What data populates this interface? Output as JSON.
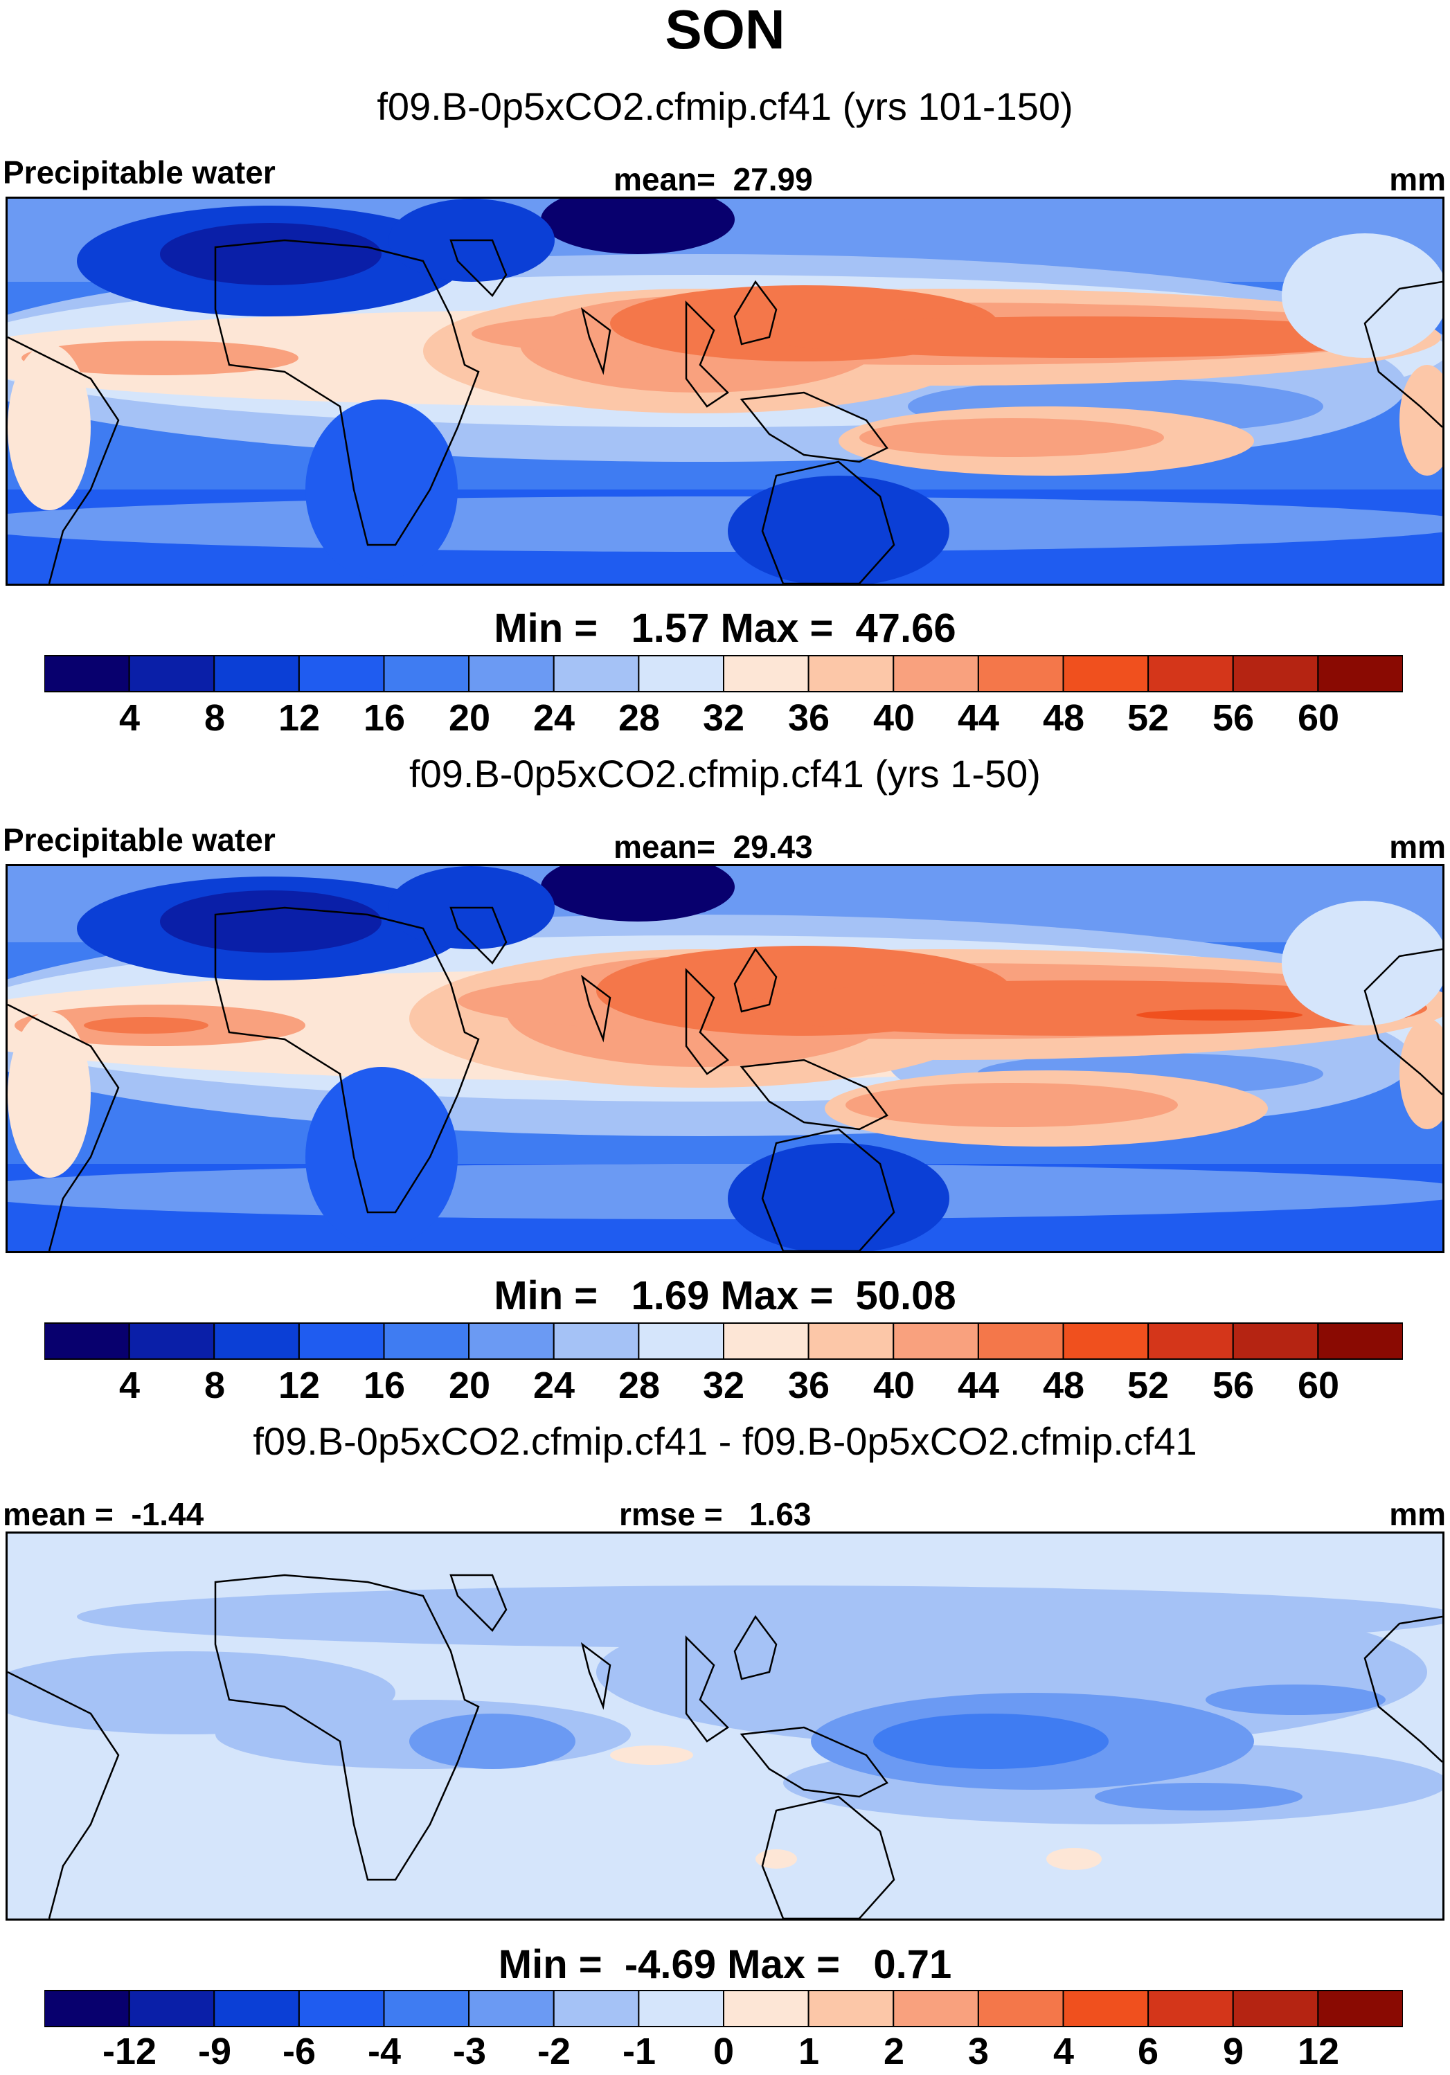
{
  "figure": {
    "season": "SON",
    "colors": {
      "abs": [
        "#08006e",
        "#0a1fa8",
        "#0b3fd6",
        "#1f5cf0",
        "#3f7cf2",
        "#6b9af3",
        "#a5c2f6",
        "#d5e5fb",
        "#fde6d6",
        "#fcc7a8",
        "#f9a17e",
        "#f4774a",
        "#f0501e",
        "#d4361a",
        "#b52412",
        "#8a0a02"
      ],
      "diff": [
        "#08006e",
        "#0a1fa8",
        "#0b3fd6",
        "#1f5cf0",
        "#3f7cf2",
        "#6b9af3",
        "#a5c2f6",
        "#d5e5fb",
        "#fde6d6",
        "#fcc7a8",
        "#f9a17e",
        "#f4774a",
        "#f0501e",
        "#d4361a",
        "#b52412",
        "#8a0a02"
      ]
    }
  },
  "panels": [
    {
      "case_title": "f09.B-0p5xCO2.cfmip.cf41 (yrs 101-150)",
      "left_label": "Precipitable water",
      "center_label": "mean=  27.99",
      "units": "mm",
      "minmax": "Min =   1.57 Max =  47.66",
      "ticks": [
        "4",
        "8",
        "12",
        "16",
        "20",
        "24",
        "28",
        "32",
        "36",
        "40",
        "44",
        "48",
        "52",
        "56",
        "60"
      ]
    },
    {
      "case_title": "f09.B-0p5xCO2.cfmip.cf41 (yrs 1-50)",
      "left_label": "Precipitable water",
      "center_label": "mean=  29.43",
      "units": "mm",
      "minmax": "Min =   1.69 Max =  50.08",
      "ticks": [
        "4",
        "8",
        "12",
        "16",
        "20",
        "24",
        "28",
        "32",
        "36",
        "40",
        "44",
        "48",
        "52",
        "56",
        "60"
      ]
    },
    {
      "case_title": "f09.B-0p5xCO2.cfmip.cf41 - f09.B-0p5xCO2.cfmip.cf41",
      "left_label": "mean =  -1.44",
      "center_label": "rmse =   1.63",
      "units": "mm",
      "minmax": "Min =  -4.69 Max =   0.71",
      "ticks": [
        "-12",
        "-9",
        "-6",
        "-4",
        "-3",
        "-2",
        "-1",
        "0",
        "1",
        "2",
        "3",
        "4",
        "6",
        "9",
        "12"
      ]
    }
  ]
}
